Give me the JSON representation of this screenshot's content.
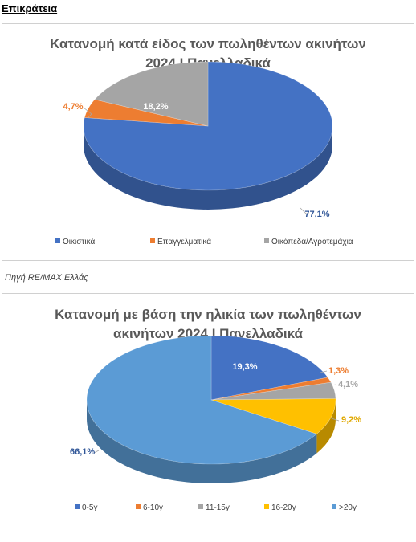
{
  "page": {
    "heading": "Επικράτεια",
    "source_note": "Πηγή RE/MAX Ελλάς"
  },
  "chart_data": [
    {
      "type": "pie",
      "title": "Κατανομή κατά είδος των πωληθέντων ακινήτων 2024 Ι Πανελλαδικά",
      "title_lines": [
        "Κατανομή κατά είδος των πωληθέντων ακινήτων",
        "2024 Ι Πανελλαδικά"
      ],
      "categories": [
        "Οικιστικά",
        "Επαγγελματικά",
        "Οικόπεδα/Αγροτεμάχια"
      ],
      "values": [
        77.1,
        4.7,
        18.2
      ],
      "labels": [
        "77,1%",
        "4,7%",
        "18,2%"
      ],
      "colors": [
        "#4472C4",
        "#ED7D31",
        "#A5A5A5"
      ],
      "label_colors": [
        "#2F5597",
        "#ED7D31",
        "#ffffff"
      ],
      "style": "3d",
      "legend": "bottom"
    },
    {
      "type": "pie",
      "title": "Κατανομή με βάση την ηλικία των πωληθέντων ακινήτων 2024 Ι Πανελλαδικά",
      "title_lines": [
        "Κατανομή με βάση την ηλικία των πωληθέντων",
        "ακινήτων 2024 Ι Πανελλαδικά"
      ],
      "categories": [
        "0-5y",
        "6-10y",
        "11-15y",
        "16-20y",
        ">20y"
      ],
      "values": [
        19.3,
        1.3,
        4.1,
        9.2,
        66.1
      ],
      "labels": [
        "19,3%",
        "1,3%",
        "4,1%",
        "9,2%",
        "66,1%"
      ],
      "colors": [
        "#4472C4",
        "#ED7D31",
        "#A5A5A5",
        "#FFC000",
        "#5B9BD5"
      ],
      "label_colors": [
        "#ffffff",
        "#ED7D31",
        "#A5A5A5",
        "#E0A800",
        "#2F5597"
      ],
      "style": "3d",
      "legend": "bottom"
    }
  ]
}
